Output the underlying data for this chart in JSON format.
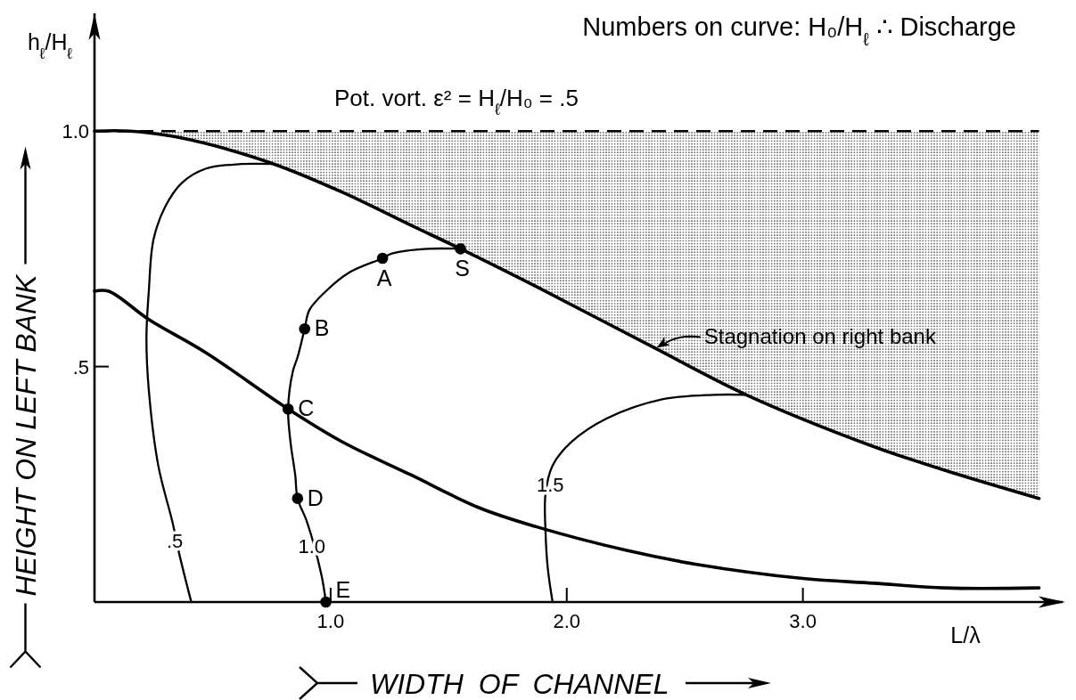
{
  "chart_data": {
    "type": "line",
    "title": "Numbers on curve: H₀/H$_{ℓ}$ ∴ Discharge",
    "subtitle": "Pot. vort. ε² = H$_{ℓ}$/H₀ = .5",
    "xlabel": "WIDTH OF CHANNEL",
    "ylabel": "HEIGHT ON LEFT BANK",
    "xlim": [
      0,
      4.1
    ],
    "ylim": [
      0,
      1.25
    ],
    "xticks": [
      {
        "value": 1,
        "label": "1.0"
      },
      {
        "value": 2,
        "label": "2.0"
      },
      {
        "value": 3,
        "label": "3.0"
      }
    ],
    "yticks": [
      {
        "value": 0.5,
        "label": ".5"
      },
      {
        "value": 1,
        "label": "1.0"
      }
    ],
    "ref_lines": [
      {
        "axis": "y",
        "value": 1,
        "line_style": "dashed"
      }
    ],
    "series": [
      {
        "color": "#000000",
        "x": [
          0,
          0.15,
          0.32,
          0.5,
          0.76,
          1.05,
          1.34,
          1.55,
          1.87,
          2.37,
          2.76,
          3.3,
          3.6,
          4.0
        ],
        "values": [
          1,
          1,
          0.99,
          0.97,
          0.93,
          0.87,
          0.8,
          0.75,
          0.67,
          0.54,
          0.44,
          0.33,
          0.28,
          0.22
        ],
        "lower": [
          1,
          1,
          0.99,
          0.97,
          0.93,
          0.87,
          0.8,
          0.75,
          0.67,
          0.54,
          0.44,
          0.33,
          0.28,
          0.22
        ],
        "upper": [
          1,
          1,
          1,
          1,
          1,
          1,
          1,
          1,
          1,
          1,
          1,
          1,
          1,
          1
        ]
      },
      {
        "color": "#000000",
        "x": [
          0,
          0.06,
          0.23,
          0.47,
          0.82,
          1.05,
          1.34,
          1.63,
          1.87,
          2.25,
          2.55,
          3.0,
          3.3,
          3.6,
          4.0
        ],
        "values": [
          0.66,
          0.66,
          0.6,
          0.53,
          0.41,
          0.34,
          0.27,
          0.2,
          0.16,
          0.11,
          0.08,
          0.05,
          0.04,
          0.03,
          0.03
        ]
      },
      {
        "color": "#000000",
        "x": [
          0.41,
          0.36,
          0.33,
          0.27,
          0.23,
          0.22,
          0.23,
          0.25,
          0.3,
          0.37,
          0.47,
          0.62,
          0.76
        ],
        "values": [
          0,
          0.1,
          0.17,
          0.29,
          0.45,
          0.56,
          0.66,
          0.77,
          0.84,
          0.89,
          0.92,
          0.93,
          0.93
        ]
      },
      {
        "color": "#000000",
        "x": [
          0.98,
          0.96,
          0.9,
          0.86,
          0.85,
          0.83,
          0.82,
          0.84,
          0.86,
          0.89,
          0.91,
          0.98,
          1.08,
          1.22,
          1.26,
          1.41,
          1.55
        ],
        "values": [
          0,
          0.06,
          0.17,
          0.22,
          0.27,
          0.34,
          0.41,
          0.49,
          0.52,
          0.58,
          0.62,
          0.66,
          0.7,
          0.73,
          0.74,
          0.75,
          0.75
        ]
      },
      {
        "color": "#000000",
        "x": [
          1.94,
          1.92,
          1.91,
          1.91,
          1.94,
          2.02,
          2.17,
          2.4,
          2.62,
          2.76
        ],
        "values": [
          0,
          0.07,
          0.15,
          0.23,
          0.29,
          0.34,
          0.39,
          0.43,
          0.44,
          0.44
        ]
      },
      {
        "type": "scatter",
        "color": "#000000",
        "marker": "circle",
        "x": [
          1.55,
          1.22,
          0.89,
          0.82,
          0.86,
          0.98
        ],
        "values": [
          0.75,
          0.73,
          0.58,
          0.41,
          0.22,
          0
        ]
      }
    ],
    "annotations": [
      "L/λ",
      "h$_{ℓ}$/H$_{ℓ}$",
      {
        "text": "S",
        "x": 1.55,
        "y": 0.75
      },
      {
        "text": "A",
        "x": 1.22,
        "y": 0.73
      },
      {
        "text": "B",
        "x": 0.89,
        "y": 0.58
      },
      {
        "text": "C",
        "x": 0.82,
        "y": 0.41
      },
      {
        "text": "D",
        "x": 0.86,
        "y": 0.22
      },
      {
        "text": "E",
        "x": 0.98,
        "y": 0
      },
      {
        "text": ".5",
        "x": 0.34,
        "y": 0.13
      },
      {
        "text": "1.0",
        "x": 0.92,
        "y": 0.12
      },
      {
        "text": "1.5",
        "x": 1.93,
        "y": 0.25
      },
      {
        "text": "Stagnation on right bank",
        "x": 2.37,
        "y": 0.54
      }
    ]
  }
}
